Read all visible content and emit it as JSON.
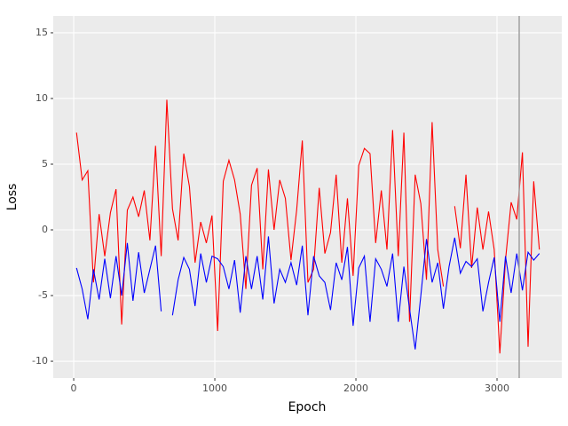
{
  "chart_data": {
    "type": "line",
    "xlabel": "Epoch",
    "ylabel": "Loss",
    "xlim": [
      -145,
      3459
    ],
    "ylim": [
      -11.28,
      16.28
    ],
    "xticks": [
      0,
      1000,
      2000,
      3000
    ],
    "yticks": [
      -10,
      -5,
      0,
      5,
      10,
      15
    ],
    "grid": true,
    "background": "#ebebeb",
    "vlines": [
      3157
    ],
    "vline_color": "#a0a0a0",
    "x": [
      20,
      60,
      100,
      140,
      180,
      220,
      260,
      300,
      340,
      380,
      420,
      460,
      500,
      540,
      580,
      620,
      660,
      700,
      740,
      780,
      820,
      860,
      900,
      940,
      980,
      1020,
      1060,
      1100,
      1140,
      1180,
      1220,
      1260,
      1300,
      1340,
      1380,
      1420,
      1460,
      1500,
      1540,
      1580,
      1620,
      1660,
      1700,
      1740,
      1780,
      1820,
      1860,
      1900,
      1940,
      1980,
      2020,
      2060,
      2100,
      2140,
      2180,
      2220,
      2260,
      2300,
      2340,
      2380,
      2420,
      2460,
      2500,
      2540,
      2580,
      2620,
      2660,
      2700,
      2740,
      2780,
      2820,
      2860,
      2900,
      2940,
      2980,
      3020,
      3060,
      3100,
      3140,
      3180,
      3220,
      3260,
      3300
    ],
    "series": [
      {
        "color": "#ff0000",
        "values": [
          7.4,
          3.8,
          4.5,
          -4,
          1.2,
          -2,
          1.3,
          3.1,
          -7.2,
          1.5,
          2.5,
          1.0,
          3.0,
          -0.8,
          6.4,
          -2,
          9.9,
          1.6,
          -0.8,
          5.8,
          3.3,
          -2.5,
          0.6,
          -1,
          1.1,
          -7.7,
          3.7,
          5.3,
          3.8,
          1.2,
          -4.5,
          3.4,
          4.7,
          -3,
          4.6,
          0,
          3.8,
          2.4,
          -2.3,
          1.5,
          6.8,
          -4,
          -3,
          3.2,
          -1.8,
          -0.2,
          4.2,
          -2.5,
          2.4,
          -3.5,
          4.9,
          6.2,
          5.8,
          -1,
          3,
          -1.5,
          7.6,
          -2,
          7.4,
          -7,
          4.2,
          2,
          -3.8,
          8.2,
          -1.5,
          -4.3,
          null,
          1.8,
          -1.4,
          4.2,
          -2.9,
          1.7,
          -1.5,
          1.4,
          -1.5,
          -9.4,
          -2.3,
          2.1,
          0.8,
          5.9,
          -8.9,
          3.7,
          -1.5
        ]
      },
      {
        "color": "#0000ff",
        "values": [
          -2.9,
          -4.5,
          -6.8,
          -3,
          -5.3,
          -2.2,
          -5.2,
          -2,
          -5,
          -1,
          -5.4,
          -1.7,
          -4.8,
          -3,
          -1.2,
          -6.2,
          null,
          -6.5,
          -3.8,
          -2.1,
          -3,
          -5.8,
          -1.8,
          -4,
          -2,
          -2.2,
          -2.8,
          -4.5,
          -2.3,
          -6.3,
          -2,
          -4.5,
          -2,
          -5.3,
          -0.5,
          -5.6,
          -3,
          -4,
          -2.5,
          -4.2,
          -1.2,
          -6.5,
          -2,
          -3.5,
          -4,
          -6.1,
          -2.5,
          -3.8,
          -1.3,
          -7.3,
          -2.9,
          -2,
          -7,
          -2.2,
          -3,
          -4.3,
          -1.8,
          -7,
          -2.8,
          -6,
          -9.1,
          -5,
          -0.7,
          -4,
          -2.5,
          -6,
          -2.8,
          -0.6,
          -3.3,
          -2.4,
          -2.8,
          -2.2,
          -6.2,
          -4,
          -2.1,
          -7,
          -2,
          -4.8,
          -1.8,
          -4.6,
          -1.7,
          -2.3,
          -1.8
        ]
      }
    ]
  }
}
